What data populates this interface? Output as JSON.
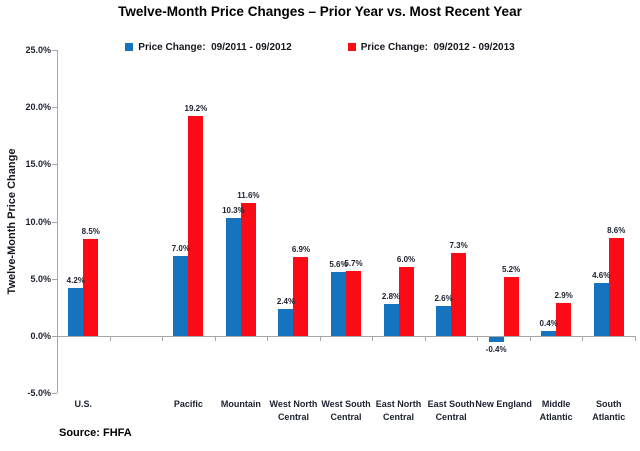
{
  "title": "Twelve-Month Price Changes – Prior Year vs. Most Recent Year",
  "source": "Source: FHFA",
  "chart_data": {
    "type": "bar",
    "title": "Twelve-Month Price Changes – Prior Year vs. Most Recent Year",
    "ylabel": "Twelve-Month Price Change",
    "xlabel": "",
    "categories": [
      "U.S.",
      "Pacific",
      "Mountain",
      "West North Central",
      "West South Central",
      "East North Central",
      "East South Central",
      "New England",
      "Middle Atlantic",
      "South Atlantic"
    ],
    "series": [
      {
        "name": "Price Change:  09/2011 - 09/2012",
        "color": "#1574bd",
        "values": [
          4.2,
          7.0,
          10.3,
          2.4,
          5.6,
          2.8,
          2.6,
          -0.4,
          0.4,
          4.6
        ]
      },
      {
        "name": "Price Change:  09/2012 - 09/2013",
        "color": "#fa0b16",
        "values": [
          8.5,
          19.2,
          11.6,
          6.9,
          5.7,
          6.0,
          7.3,
          5.2,
          2.9,
          8.6
        ]
      }
    ],
    "data_labels": [
      [
        "4.2%",
        "7.0%",
        "10.3%",
        "2.4%",
        "5.6%",
        "2.8%",
        "2.6%",
        "-0.4%",
        "0.4%",
        "4.6%"
      ],
      [
        "8.5%",
        "19.2%",
        "11.6%",
        "6.9%",
        "5.7%",
        "6.0%",
        "7.3%",
        "5.2%",
        "2.9%",
        "8.6%"
      ]
    ],
    "ylim": [
      -5,
      25
    ],
    "y_tick_step": 5,
    "y_tick_labels": [
      "25.0%",
      "20.0%",
      "15.0%",
      "10.0%",
      "5.0%",
      "0.0%",
      "-5.0%"
    ],
    "grid": false,
    "legend_position": "top",
    "source": "Source: FHFA",
    "layout": {
      "slots": 11,
      "category_slots": [
        0,
        2,
        3,
        4,
        5,
        6,
        7,
        8,
        9,
        10
      ]
    }
  }
}
